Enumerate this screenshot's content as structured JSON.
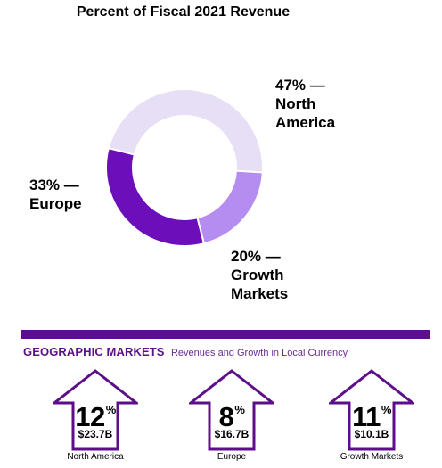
{
  "chart_data": {
    "type": "pie",
    "title": "Percent of Fiscal 2021 Revenue",
    "slices": [
      {
        "name": "North America",
        "value": 47,
        "label_lines": [
          "47% —",
          "North",
          "America"
        ],
        "color": "#e6dff6"
      },
      {
        "name": "Growth Markets",
        "value": 20,
        "label_lines": [
          "20% —",
          "Growth",
          "Markets"
        ],
        "color": "#b58cf0"
      },
      {
        "name": "Europe",
        "value": 33,
        "label_lines": [
          "33% —",
          "Europe"
        ],
        "color": "#6c0fba"
      }
    ]
  },
  "geographic": {
    "title": "GEOGRAPHIC MARKETS",
    "subtitle": "Revenues and Growth in Local Currency",
    "accent_color": "#5d0e8b",
    "markets": [
      {
        "growth": "12",
        "growth_unit": "%",
        "revenue": "$23.7B",
        "name": "North America"
      },
      {
        "growth": "8",
        "growth_unit": "%",
        "revenue": "$16.7B",
        "name": "Europe"
      },
      {
        "growth": "11",
        "growth_unit": "%",
        "revenue": "$10.1B",
        "name": "Growth Markets"
      }
    ]
  }
}
